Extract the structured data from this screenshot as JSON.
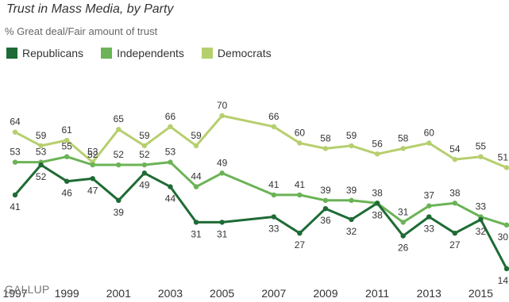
{
  "chart_data": {
    "type": "line",
    "title": "Trust in Mass Media, by Party",
    "subtitle": "% Great deal/Fair amount of trust",
    "source": "GALLUP",
    "x": [
      1997,
      1998,
      1999,
      2000,
      2001,
      2002,
      2003,
      2004,
      2005,
      2007,
      2008,
      2009,
      2010,
      2011,
      2012,
      2013,
      2014,
      2015,
      2016
    ],
    "x_ticks": [
      1997,
      1999,
      2001,
      2003,
      2005,
      2007,
      2009,
      2011,
      2013,
      2015
    ],
    "xlim": [
      1997,
      2016
    ],
    "ylim": [
      10,
      75
    ],
    "grid": false,
    "legend_position": "top-left",
    "series": [
      {
        "name": "Democrats",
        "color": "#b6cf6e",
        "values": [
          64,
          59,
          61,
          53,
          65,
          59,
          66,
          59,
          70,
          66,
          60,
          58,
          59,
          56,
          58,
          60,
          54,
          55,
          51
        ],
        "label_pos": [
          "above",
          "above",
          "above",
          "above",
          "above",
          "above",
          "above",
          "above",
          "above",
          "above",
          "above",
          "above",
          "above",
          "above",
          "above",
          "above",
          "above",
          "above",
          "above"
        ]
      },
      {
        "name": "Independents",
        "color": "#6bb356",
        "values": [
          53,
          53,
          55,
          52,
          52,
          52,
          53,
          44,
          49,
          41,
          41,
          39,
          39,
          38,
          31,
          37,
          38,
          33,
          30
        ],
        "label_pos": [
          "above",
          "above",
          "above",
          "above",
          "above",
          "above",
          "above",
          "above",
          "above",
          "above",
          "above",
          "above",
          "above",
          "above",
          "above",
          "above",
          "above",
          "above",
          "below"
        ]
      },
      {
        "name": "Republicans",
        "color": "#1e6b35",
        "values": [
          41,
          52,
          46,
          47,
          39,
          49,
          44,
          31,
          31,
          33,
          27,
          36,
          32,
          38,
          26,
          33,
          27,
          32,
          14
        ],
        "label_pos": [
          "below",
          "below",
          "below",
          "below",
          "below",
          "below",
          "below",
          "below",
          "below",
          "below",
          "below",
          "below",
          "below",
          "below",
          "below",
          "below",
          "below",
          "below",
          "below"
        ]
      }
    ]
  }
}
